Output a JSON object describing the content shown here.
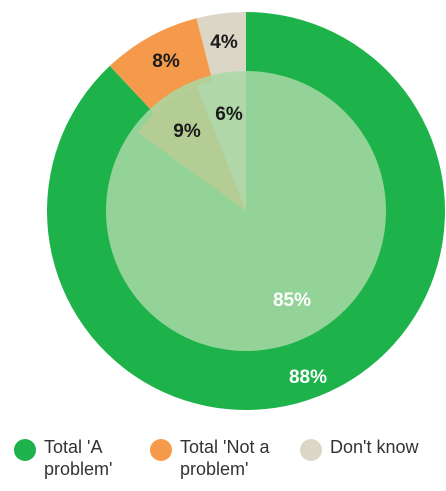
{
  "chart_data": {
    "type": "pie",
    "rings": [
      {
        "ring": "outer",
        "slices": [
          {
            "category": "Total 'A problem'",
            "value": 88,
            "label": "88%"
          },
          {
            "category": "Total 'Not a problem'",
            "value": 8,
            "label": "8%"
          },
          {
            "category": "Don't know",
            "value": 4,
            "label": "4%"
          }
        ]
      },
      {
        "ring": "inner",
        "slices": [
          {
            "category": "Total 'A problem'",
            "value": 85,
            "label": "85%"
          },
          {
            "category": "Total 'Not a problem'",
            "value": 9,
            "label": "9%"
          },
          {
            "category": "Don't know",
            "value": 6,
            "label": "6%"
          }
        ]
      }
    ],
    "legend": [
      {
        "label": "Total 'A problem'",
        "color": "#1db34a"
      },
      {
        "label": "Total 'Not a problem'",
        "color": "#f59a4a"
      },
      {
        "label": "Don't know",
        "color": "#dbd6c6"
      }
    ],
    "legend_position": "bottom",
    "colors": {
      "a_problem": "#1db34a",
      "a_problem_inner": "#1db34a",
      "not_a_problem": "#f59a4a",
      "not_a_problem_inner": "#ef8a3a",
      "dont_know": "#dbd6c6",
      "dont_know_inner": "#d3cdbb",
      "ring_separator": "#a9d8a4"
    }
  }
}
